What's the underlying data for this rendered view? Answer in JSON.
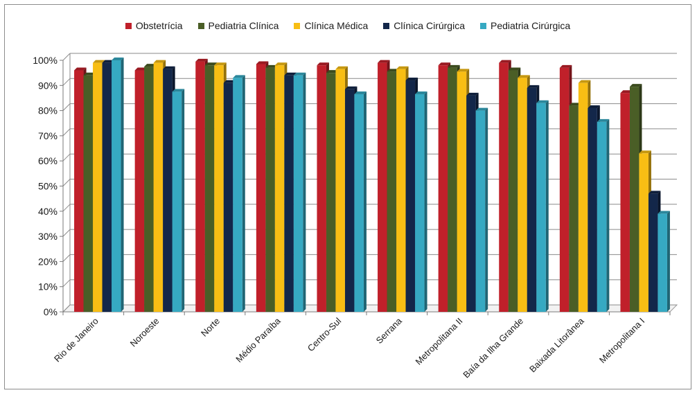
{
  "chart_data": {
    "type": "bar",
    "title": "",
    "xlabel": "",
    "ylabel": "",
    "ylim": [
      0,
      100
    ],
    "yticks": [
      "0%",
      "10%",
      "20%",
      "30%",
      "40%",
      "50%",
      "60%",
      "70%",
      "80%",
      "90%",
      "100%"
    ],
    "grid": true,
    "legend_position": "top",
    "categories": [
      "Rio de Janeiro",
      "Noroeste",
      "Norte",
      "Médio Paraíba",
      "Centro-Sul",
      "Serrana",
      "Metropolitana II",
      "Baía da Ilha Grande",
      "Baixada Litorânea",
      "Metropolitana I"
    ],
    "series": [
      {
        "name": "Obstetrícia",
        "color": "#c0202a",
        "values": [
          96,
          96,
          99.5,
          98.5,
          98,
          99,
          98,
          99,
          97,
          87
        ]
      },
      {
        "name": "Pediatria Clínica",
        "color": "#4a5e26",
        "values": [
          94,
          97.5,
          98,
          97,
          95,
          95.5,
          97,
          96,
          82,
          89.5
        ]
      },
      {
        "name": "Clínica Médica",
        "color": "#f8be14",
        "values": [
          99,
          99,
          98,
          98,
          96.5,
          96.5,
          95.5,
          93,
          91,
          63
        ]
      },
      {
        "name": "Clínica Cirúrgica",
        "color": "#13274a",
        "values": [
          99,
          96.5,
          91,
          94,
          88.5,
          92,
          86,
          89,
          81,
          47
        ]
      },
      {
        "name": "Pediatria Cirúrgica",
        "color": "#36a9c2",
        "values": [
          100,
          87.5,
          93,
          94,
          86.5,
          86.5,
          80,
          83,
          75.5,
          39
        ]
      }
    ]
  }
}
